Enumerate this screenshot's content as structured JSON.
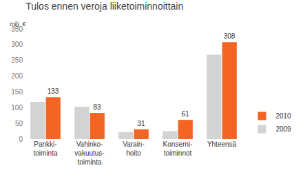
{
  "chart_data": {
    "type": "bar",
    "title": "Tulos ennen veroja liiketoiminnoittain",
    "y_label": "milj. €",
    "categories": [
      "Pankki-\ntoiminta",
      "Vahinko-\nvakuutus-\ntoiminta",
      "Varain-\nhoito",
      "Konserni-\ntoiminnot",
      "Yhteensä"
    ],
    "series": [
      {
        "name": "2009",
        "color": "#d3d3d3",
        "values": [
          118,
          103,
          22,
          25,
          268
        ],
        "data_labels": false
      },
      {
        "name": "2010",
        "color": "#f26522",
        "values": [
          133,
          83,
          31,
          61,
          308
        ],
        "data_labels": true
      }
    ],
    "ylim": [
      0,
      350
    ],
    "yticks": [
      0,
      50,
      100,
      150,
      200,
      250,
      300,
      350
    ],
    "grid": false,
    "legend": "lower right"
  }
}
